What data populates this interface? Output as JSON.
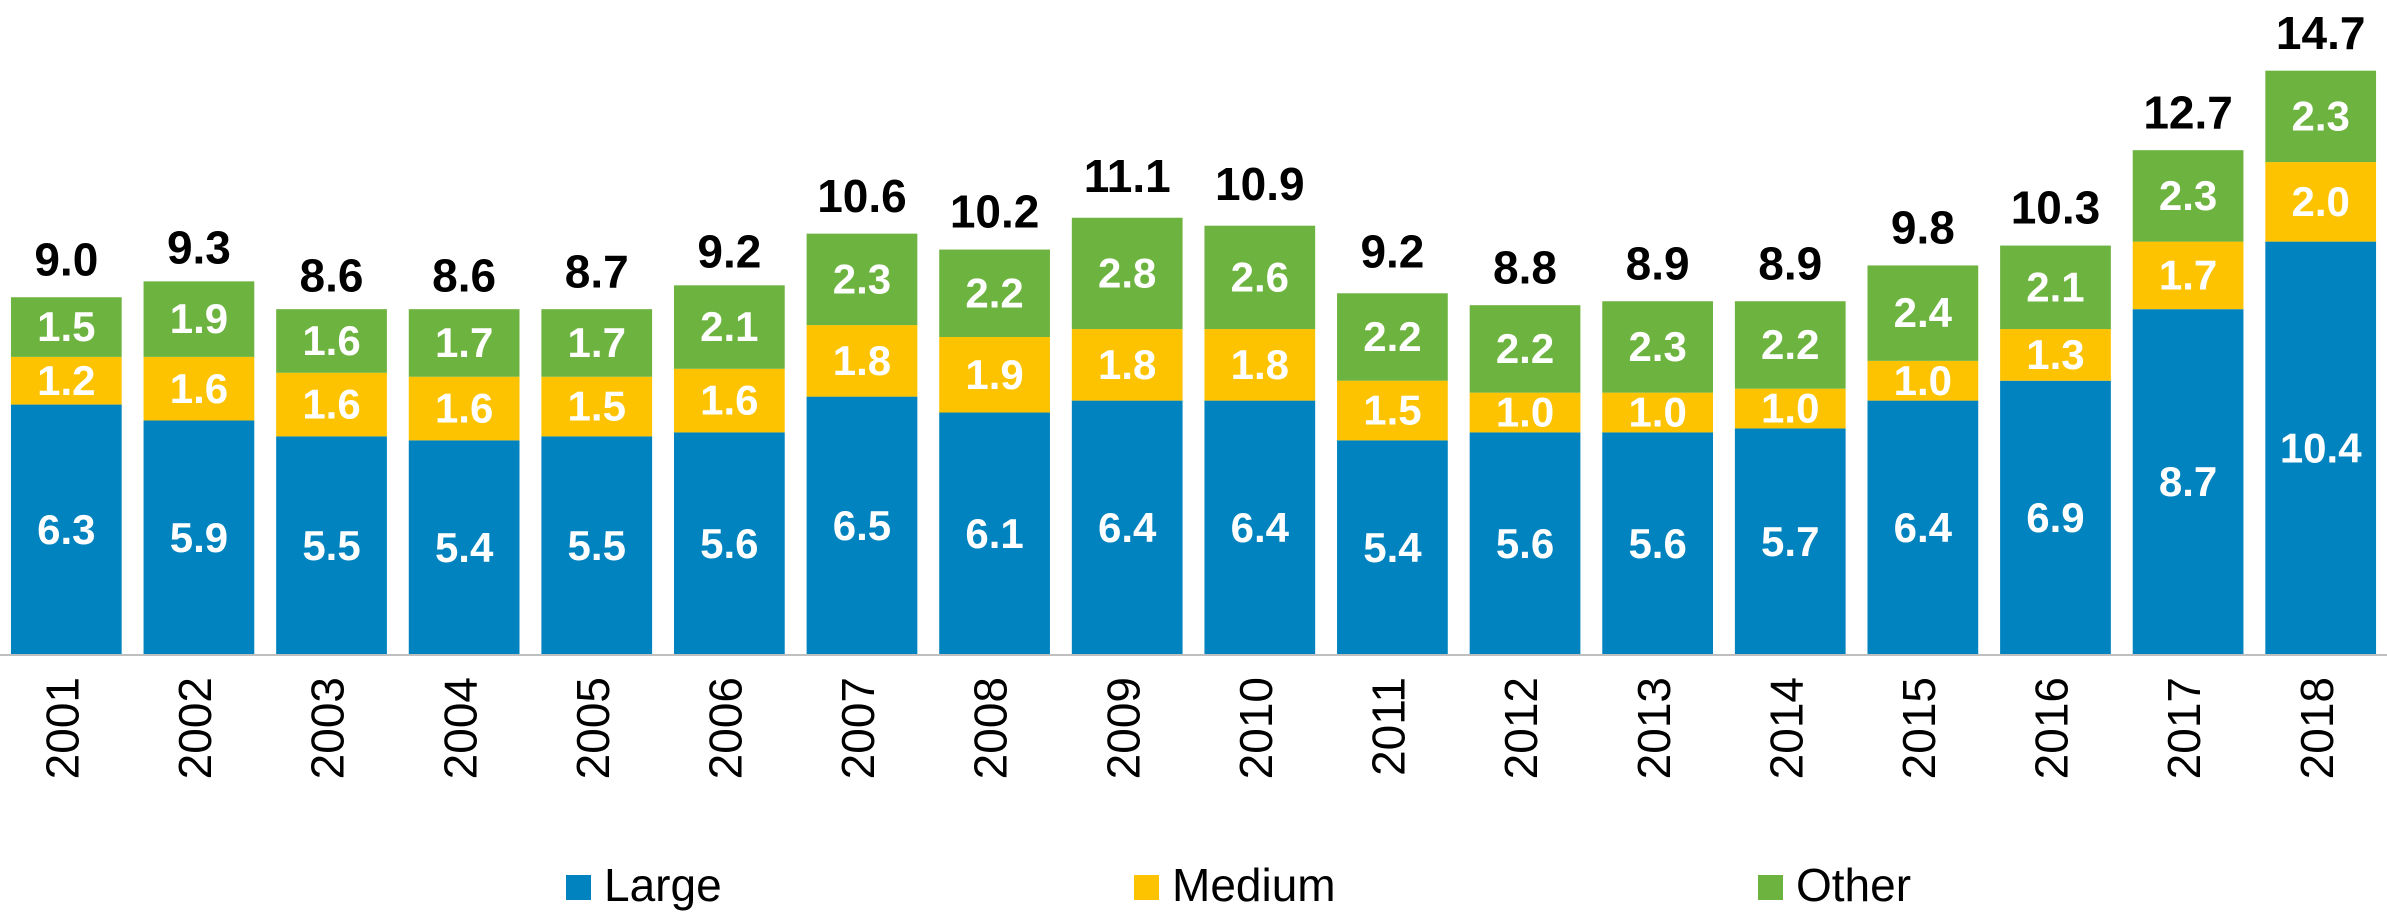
{
  "chart_data": {
    "type": "stacked-bar",
    "categories": [
      "2001",
      "2002",
      "2003",
      "2004",
      "2005",
      "2006",
      "2007",
      "2008",
      "2009",
      "2010",
      "2011",
      "2012",
      "2013",
      "2014",
      "2015",
      "2016",
      "2017",
      "2018"
    ],
    "series": [
      {
        "name": "Large",
        "color": "#0083be",
        "values": [
          6.3,
          5.9,
          5.5,
          5.4,
          5.5,
          5.6,
          6.5,
          6.1,
          6.4,
          6.4,
          5.4,
          5.6,
          5.6,
          5.7,
          6.4,
          6.9,
          8.7,
          10.4
        ]
      },
      {
        "name": "Medium",
        "color": "#fdc300",
        "values": [
          1.2,
          1.6,
          1.6,
          1.6,
          1.5,
          1.6,
          1.8,
          1.9,
          1.8,
          1.8,
          1.5,
          1.0,
          1.0,
          1.0,
          1.0,
          1.3,
          1.7,
          2.0
        ],
        "value_labels": [
          "1.2",
          "1.6",
          "1.6",
          "1.6",
          "1.5",
          "1.6",
          "1.8",
          "1.9",
          "1.8",
          "1.8",
          "1.5",
          "1.0",
          "1.0",
          "1.0",
          "1.0",
          "1.3",
          "1.7",
          "2.0"
        ]
      },
      {
        "name": "Other",
        "color": "#6db33f",
        "values": [
          1.5,
          1.9,
          1.6,
          1.7,
          1.7,
          2.1,
          2.3,
          2.2,
          2.8,
          2.6,
          2.2,
          2.2,
          2.3,
          2.2,
          2.4,
          2.1,
          2.3,
          2.3
        ]
      }
    ],
    "totals": {
      "values": [
        9.0,
        9.3,
        8.6,
        8.6,
        8.7,
        9.2,
        10.6,
        10.2,
        11.1,
        10.9,
        9.2,
        8.8,
        8.9,
        8.9,
        9.8,
        10.3,
        12.7,
        14.7
      ],
      "value_labels": [
        "9.0",
        "9.3",
        "8.6",
        "8.6",
        "8.7",
        "9.2",
        "10.6",
        "10.2",
        "11.1",
        "10.9",
        "9.2",
        "8.8",
        "8.9",
        "8.9",
        "9.8",
        "10.3",
        "12.7",
        "14.7"
      ]
    },
    "ylim": [
      0,
      16
    ],
    "legend": "bottom"
  }
}
